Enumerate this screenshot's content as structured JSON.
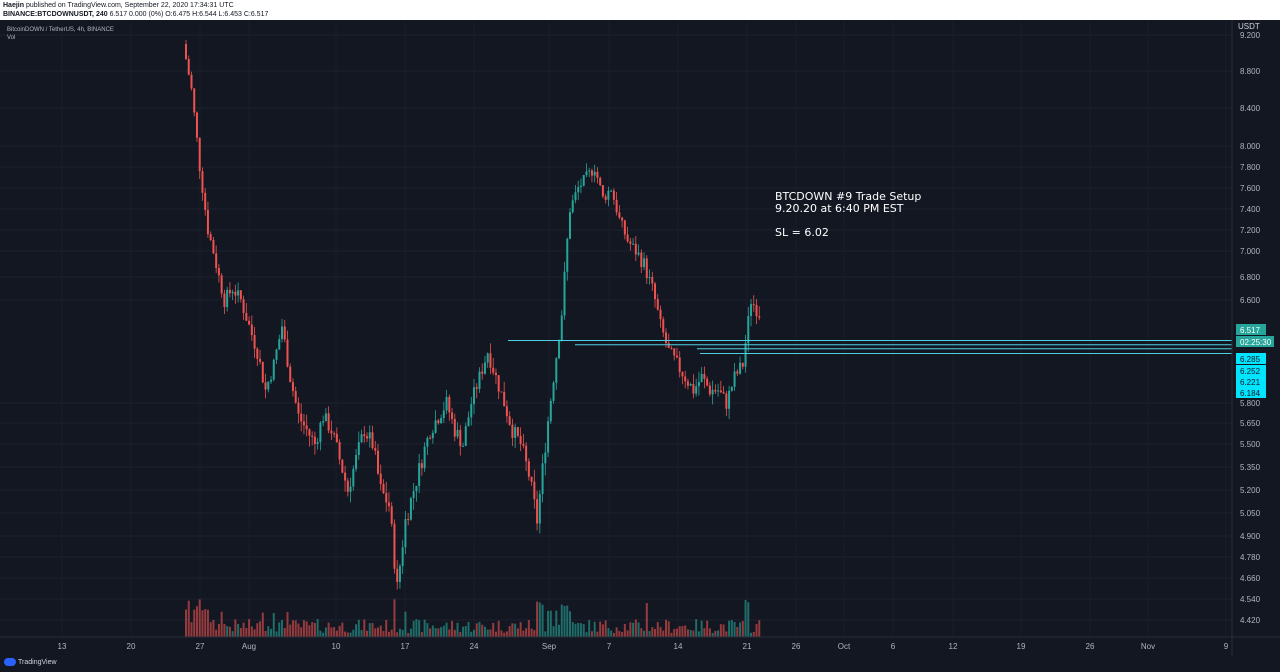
{
  "header": {
    "author": "Haejin",
    "published": "published on TradingView.com, September 22, 2020 17:34:31 UTC",
    "symbol_line_bold": "BINANCE:BTCDOWNUSDT, 240",
    "symbol_line_values": "6.517 0.000 (0%) O:6.475 H:6.544 L:6.453 C:6.517"
  },
  "legend": {
    "title": "BitcoinDOWN / TetherUS, 4h, BINANCE",
    "indicator": "Vol"
  },
  "price_axis_currency": "USDT",
  "annotation": {
    "line1": "BTCDOWN #9 Trade Setup",
    "line2": "9.20.20 at 6:40 PM EST",
    "line3": "SL = 6.02"
  },
  "footer": {
    "brand": "TradingView"
  },
  "colors": {
    "background": "#131722",
    "up": "#26a69a",
    "down": "#ef5350",
    "horizontal_lines": "#4dd0e1",
    "label_fill": "#00e5ff",
    "current_price_label": "#26a69a"
  },
  "chart_data": {
    "type": "candlestick",
    "y_axis_side": "right",
    "y_ticks": [
      "9.200",
      "8.800",
      "8.400",
      "8.000",
      "7.800",
      "7.600",
      "7.400",
      "7.200",
      "7.000",
      "6.800",
      "6.600",
      "5.800",
      "5.650",
      "5.500",
      "5.350",
      "5.200",
      "5.050",
      "4.900",
      "4.780",
      "4.660",
      "4.540",
      "4.420"
    ],
    "y_tick_values": [
      9.2,
      8.8,
      8.4,
      8.0,
      7.8,
      7.6,
      7.4,
      7.2,
      7.0,
      6.8,
      6.6,
      5.8,
      5.65,
      5.5,
      5.35,
      5.2,
      5.05,
      4.9,
      4.78,
      4.66,
      4.54,
      4.42
    ],
    "x_ticks": [
      "13",
      "20",
      "27",
      "Aug",
      "10",
      "17",
      "24",
      "Sep",
      "7",
      "14",
      "21",
      "26",
      "Oct",
      "6",
      "12",
      "19",
      "26",
      "Nov",
      "9"
    ],
    "price_labels": [
      {
        "text": "6.517",
        "value": 6.517,
        "kind": "current"
      },
      {
        "text": "02:25:30",
        "kind": "countdown"
      },
      {
        "text": "6.285",
        "value": 6.285,
        "kind": "level"
      },
      {
        "text": "6.252",
        "value": 6.252,
        "kind": "level"
      },
      {
        "text": "6.221",
        "value": 6.221,
        "kind": "level"
      },
      {
        "text": "6.184",
        "value": 6.184,
        "kind": "level"
      }
    ],
    "horizontal_levels": [
      6.285,
      6.252,
      6.221,
      6.184
    ],
    "series_close_approx": [
      9.1,
      8.6,
      7.8,
      7.2,
      6.9,
      6.6,
      6.7,
      6.6,
      6.4,
      6.2,
      5.9,
      6.1,
      6.4,
      6.0,
      5.7,
      5.6,
      5.5,
      5.7,
      5.6,
      5.4,
      5.2,
      5.4,
      5.6,
      5.5,
      5.2,
      5.1,
      4.6,
      5.0,
      5.2,
      5.4,
      5.6,
      5.7,
      5.8,
      5.6,
      5.5,
      5.8,
      6.0,
      6.2,
      6.0,
      5.8,
      5.6,
      5.5,
      5.3,
      5.0,
      5.5,
      6.0,
      6.5,
      7.4,
      7.6,
      7.7,
      7.8,
      7.5,
      7.6,
      7.3,
      7.1,
      7.0,
      6.9,
      6.7,
      6.4,
      6.2,
      6.1,
      6.0,
      5.9,
      6.0,
      5.9,
      5.9,
      5.8,
      6.0,
      6.1,
      6.6,
      6.5
    ]
  }
}
